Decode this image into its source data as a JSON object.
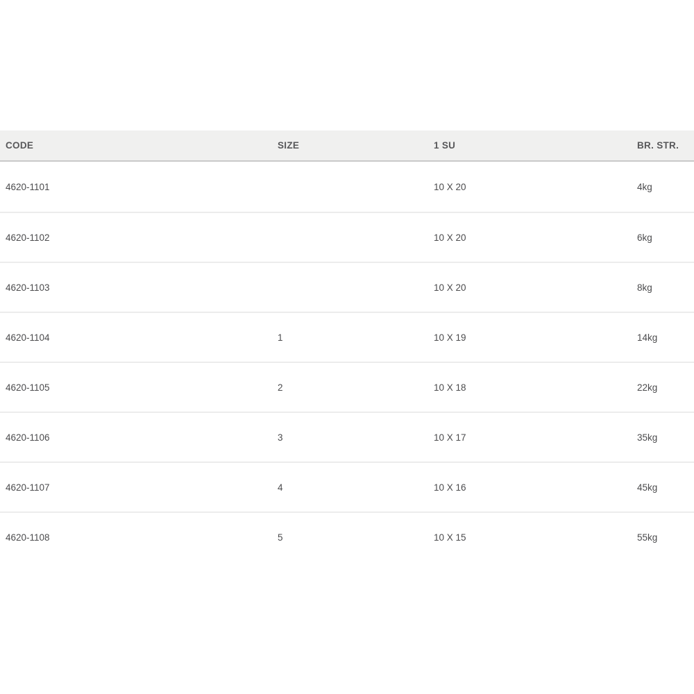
{
  "table": {
    "columns": [
      {
        "label": "CODE"
      },
      {
        "label": "SIZE"
      },
      {
        "label": "1 SU"
      },
      {
        "label": "BR. STR."
      }
    ],
    "rows": [
      {
        "code": "4620-1101",
        "size": "",
        "su": "10 X 20",
        "br_str": "4kg"
      },
      {
        "code": "4620-1102",
        "size": "",
        "su": "10 X 20",
        "br_str": "6kg"
      },
      {
        "code": "4620-1103",
        "size": "",
        "su": "10 X 20",
        "br_str": "8kg"
      },
      {
        "code": "4620-1104",
        "size": "1",
        "su": "10 X 19",
        "br_str": "14kg"
      },
      {
        "code": "4620-1105",
        "size": "2",
        "su": "10 X 18",
        "br_str": "22kg"
      },
      {
        "code": "4620-1106",
        "size": "3",
        "su": "10 X 17",
        "br_str": "35kg"
      },
      {
        "code": "4620-1107",
        "size": "4",
        "su": "10 X 16",
        "br_str": "45kg"
      },
      {
        "code": "4620-1108",
        "size": "5",
        "su": "10 X 15",
        "br_str": "55kg"
      }
    ]
  },
  "colors": {
    "header_background": "#f0f0ef",
    "header_border": "#c9c9c9",
    "header_text": "#58585a",
    "cell_text": "#4b4b4d",
    "row_separator": "#ececec",
    "page_background": "#ffffff"
  }
}
